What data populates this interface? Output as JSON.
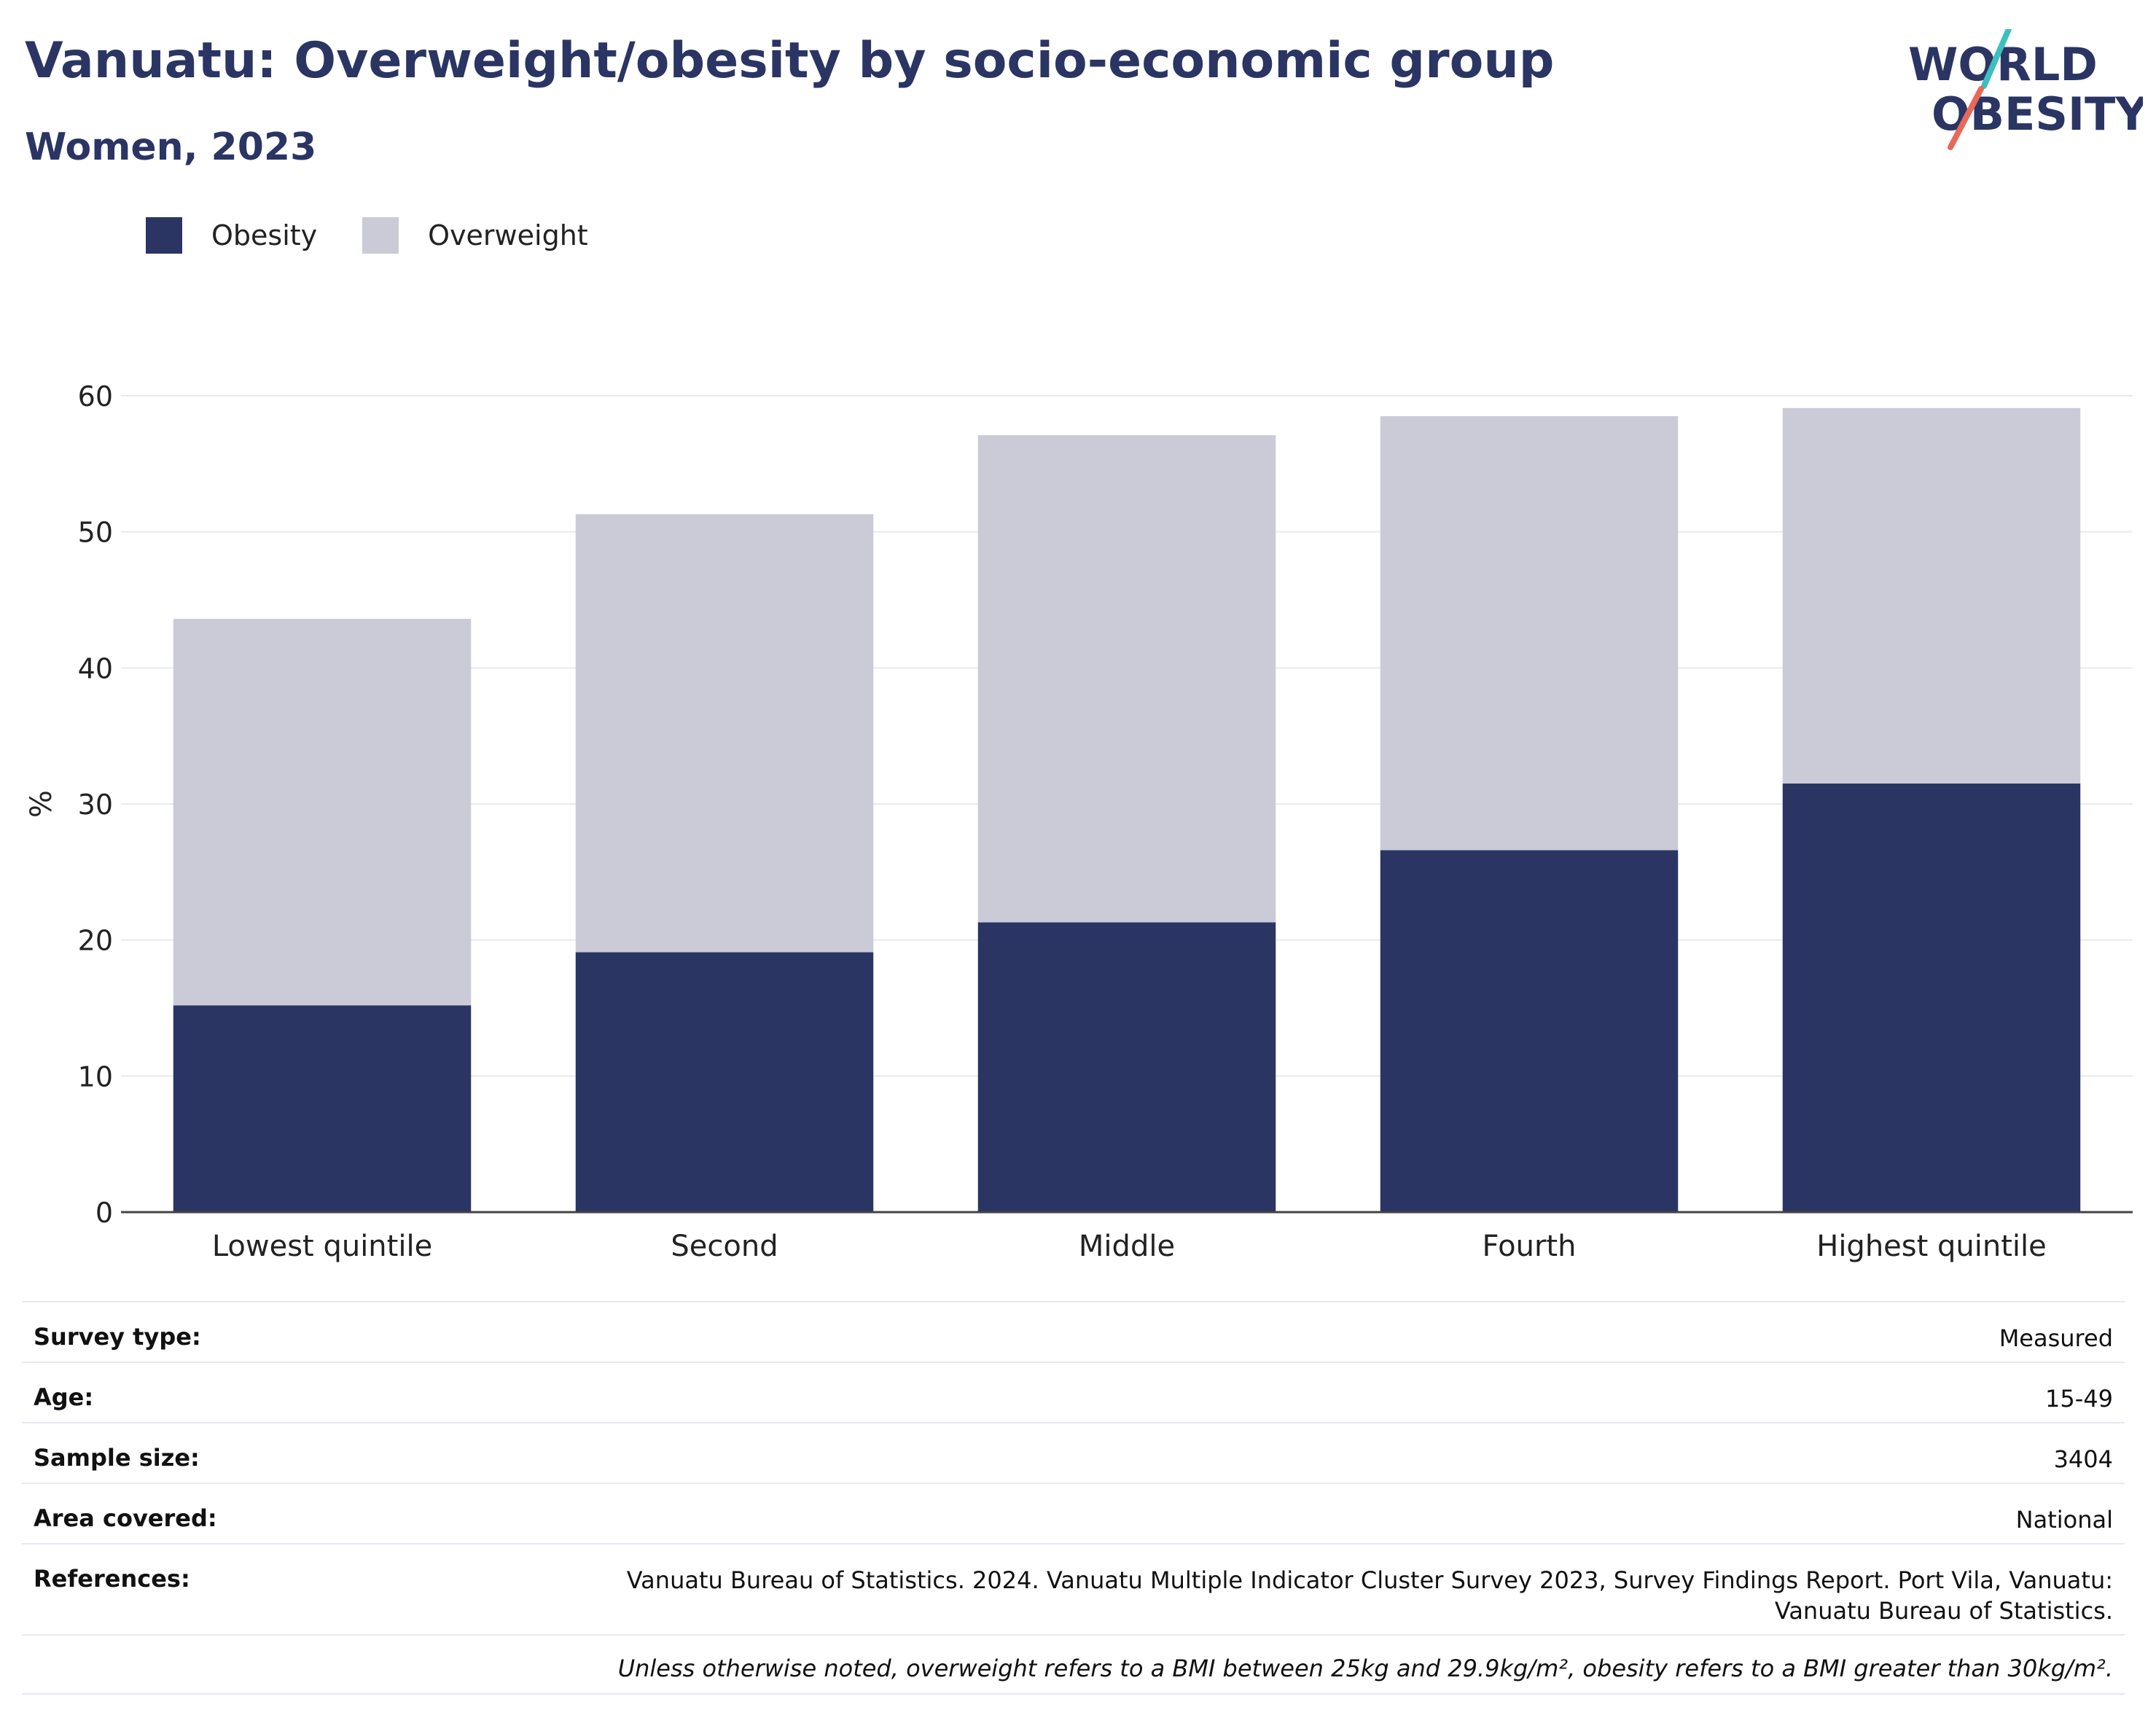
{
  "header": {
    "title": "Vanuatu: Overweight/obesity by socio-economic group",
    "subtitle": "Women, 2023"
  },
  "logo": {
    "line1": "WORLD",
    "line2": "OBESITY",
    "slash_colors": [
      "#3dbfbf",
      "#e8685a"
    ]
  },
  "legend": {
    "items": [
      {
        "label": "Obesity",
        "color": "#2a3563"
      },
      {
        "label": "Overweight",
        "color": "#cacbd7"
      }
    ]
  },
  "chart_data": {
    "type": "bar",
    "stacked": true,
    "categories": [
      "Lowest quintile",
      "Second",
      "Middle",
      "Fourth",
      "Highest quintile"
    ],
    "series": [
      {
        "name": "Obesity",
        "color": "#2a3563",
        "values": [
          15.2,
          19.1,
          21.3,
          26.6,
          31.5
        ]
      },
      {
        "name": "Overweight",
        "color": "#cacbd7",
        "values": [
          28.4,
          32.2,
          35.8,
          31.9,
          27.6
        ]
      }
    ],
    "totals": [
      43.6,
      51.3,
      57.1,
      58.5,
      59.1
    ],
    "ylabel": "%",
    "xlabel": "",
    "ylim": [
      0,
      60
    ],
    "yticks": [
      "0",
      "10",
      "20",
      "30",
      "40",
      "50",
      "60"
    ],
    "grid": true,
    "legend_position": "top-left"
  },
  "info_table": {
    "rows": [
      {
        "key": "Survey type:",
        "value": "Measured"
      },
      {
        "key": "Age:",
        "value": "15-49"
      },
      {
        "key": "Sample size:",
        "value": "3404"
      },
      {
        "key": "Area covered:",
        "value": "National"
      },
      {
        "key": "References:",
        "value": "Vanuatu Bureau of Statistics. 2024. Vanuatu Multiple Indicator Cluster Survey 2023, Survey Findings Report. Port Vila, Vanuatu: Vanuatu Bureau of Statistics."
      }
    ],
    "note": "Unless otherwise noted, overweight refers to a BMI between 25kg and 29.9kg/m², obesity refers to a BMI greater than 30kg/m²."
  }
}
